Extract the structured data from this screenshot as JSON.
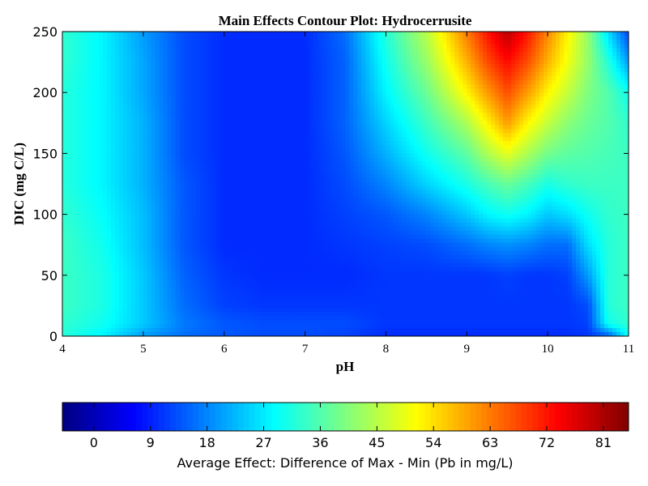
{
  "chart_data": {
    "type": "heatmap",
    "title": "Main Effects Contour Plot: Hydrocerrusite",
    "xlabel": "pH",
    "ylabel": "DIC (mg C/L)",
    "xlim": [
      4,
      11
    ],
    "ylim": [
      0,
      250
    ],
    "x_ticks": [
      4,
      5,
      6,
      7,
      8,
      9,
      10,
      11
    ],
    "y_ticks": [
      0,
      50,
      100,
      150,
      200,
      250
    ],
    "colormap": "jet",
    "colorbar": {
      "label": "Average Effect: Difference of Max - Min (Pb in mg/L)",
      "range": [
        -5,
        85
      ],
      "ticks": [
        0,
        9,
        18,
        27,
        36,
        45,
        54,
        63,
        72,
        81
      ],
      "placement": "bottom"
    },
    "grid": false,
    "x": [
      4,
      4.5,
      5,
      5.5,
      6,
      6.5,
      7,
      7.5,
      8,
      8.5,
      9,
      9.25,
      9.5,
      9.75,
      10,
      10.25,
      10.5,
      10.75,
      11
    ],
    "y": [
      0,
      10,
      25,
      50,
      75,
      100,
      125,
      150,
      175,
      200,
      225,
      250
    ],
    "z": [
      [
        32,
        28,
        20,
        16,
        14,
        13,
        13,
        12,
        10,
        10,
        10,
        10,
        10,
        10,
        10,
        10,
        11,
        14,
        30
      ],
      [
        33,
        30,
        24,
        17,
        14,
        13,
        13,
        13,
        11,
        11,
        11,
        11,
        11,
        11,
        11,
        11,
        12,
        30,
        33
      ],
      [
        34,
        31,
        24,
        16,
        12,
        11,
        11,
        11,
        11,
        11,
        11,
        11,
        11,
        11,
        11,
        11,
        13,
        32,
        34
      ],
      [
        34,
        31,
        24,
        15,
        11,
        10,
        10,
        10,
        11,
        11,
        11,
        11,
        12,
        11,
        11,
        12,
        20,
        32,
        34
      ],
      [
        34,
        30,
        23,
        14,
        10,
        10,
        10,
        11,
        12,
        13,
        16,
        18,
        19,
        18,
        16,
        16,
        26,
        32,
        34
      ],
      [
        33,
        29,
        23,
        14,
        10,
        10,
        10,
        12,
        14,
        18,
        24,
        28,
        30,
        28,
        24,
        26,
        30,
        33,
        34
      ],
      [
        32,
        28,
        22,
        14,
        10,
        10,
        10,
        13,
        18,
        25,
        31,
        35,
        38,
        35,
        31,
        33,
        34,
        34,
        34
      ],
      [
        32,
        28,
        22,
        13,
        10,
        10,
        10,
        14,
        22,
        30,
        37,
        44,
        49,
        44,
        39,
        37,
        36,
        35,
        34
      ],
      [
        32,
        28,
        22,
        13,
        10,
        10,
        10,
        15,
        25,
        34,
        44,
        52,
        60,
        52,
        46,
        41,
        38,
        36,
        33
      ],
      [
        32,
        28,
        21,
        13,
        10,
        10,
        10,
        15,
        28,
        38,
        52,
        60,
        67,
        60,
        52,
        46,
        40,
        36,
        30
      ],
      [
        33,
        28,
        21,
        13,
        10,
        10,
        10,
        15,
        30,
        42,
        58,
        67,
        73,
        67,
        58,
        50,
        42,
        32,
        20
      ],
      [
        33,
        28,
        20,
        13,
        10,
        10,
        10,
        16,
        32,
        45,
        63,
        72,
        80,
        72,
        62,
        52,
        42,
        26,
        12
      ]
    ]
  }
}
